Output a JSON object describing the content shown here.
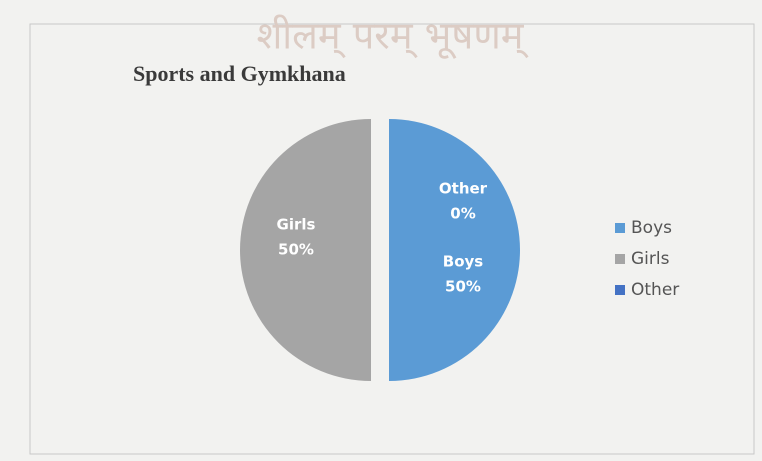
{
  "chart_data": {
    "type": "pie",
    "title": "Sports and Gymkhana",
    "watermark": "शीलम् परम् भूषणम्",
    "categories": [
      "Boys",
      "Girls",
      "Other"
    ],
    "values": [
      50,
      50,
      0
    ],
    "value_labels": [
      "50%",
      "50%",
      "0%"
    ],
    "colors": [
      "#5b9bd5",
      "#a5a5a5",
      "#4472c4"
    ],
    "legend": "right"
  }
}
